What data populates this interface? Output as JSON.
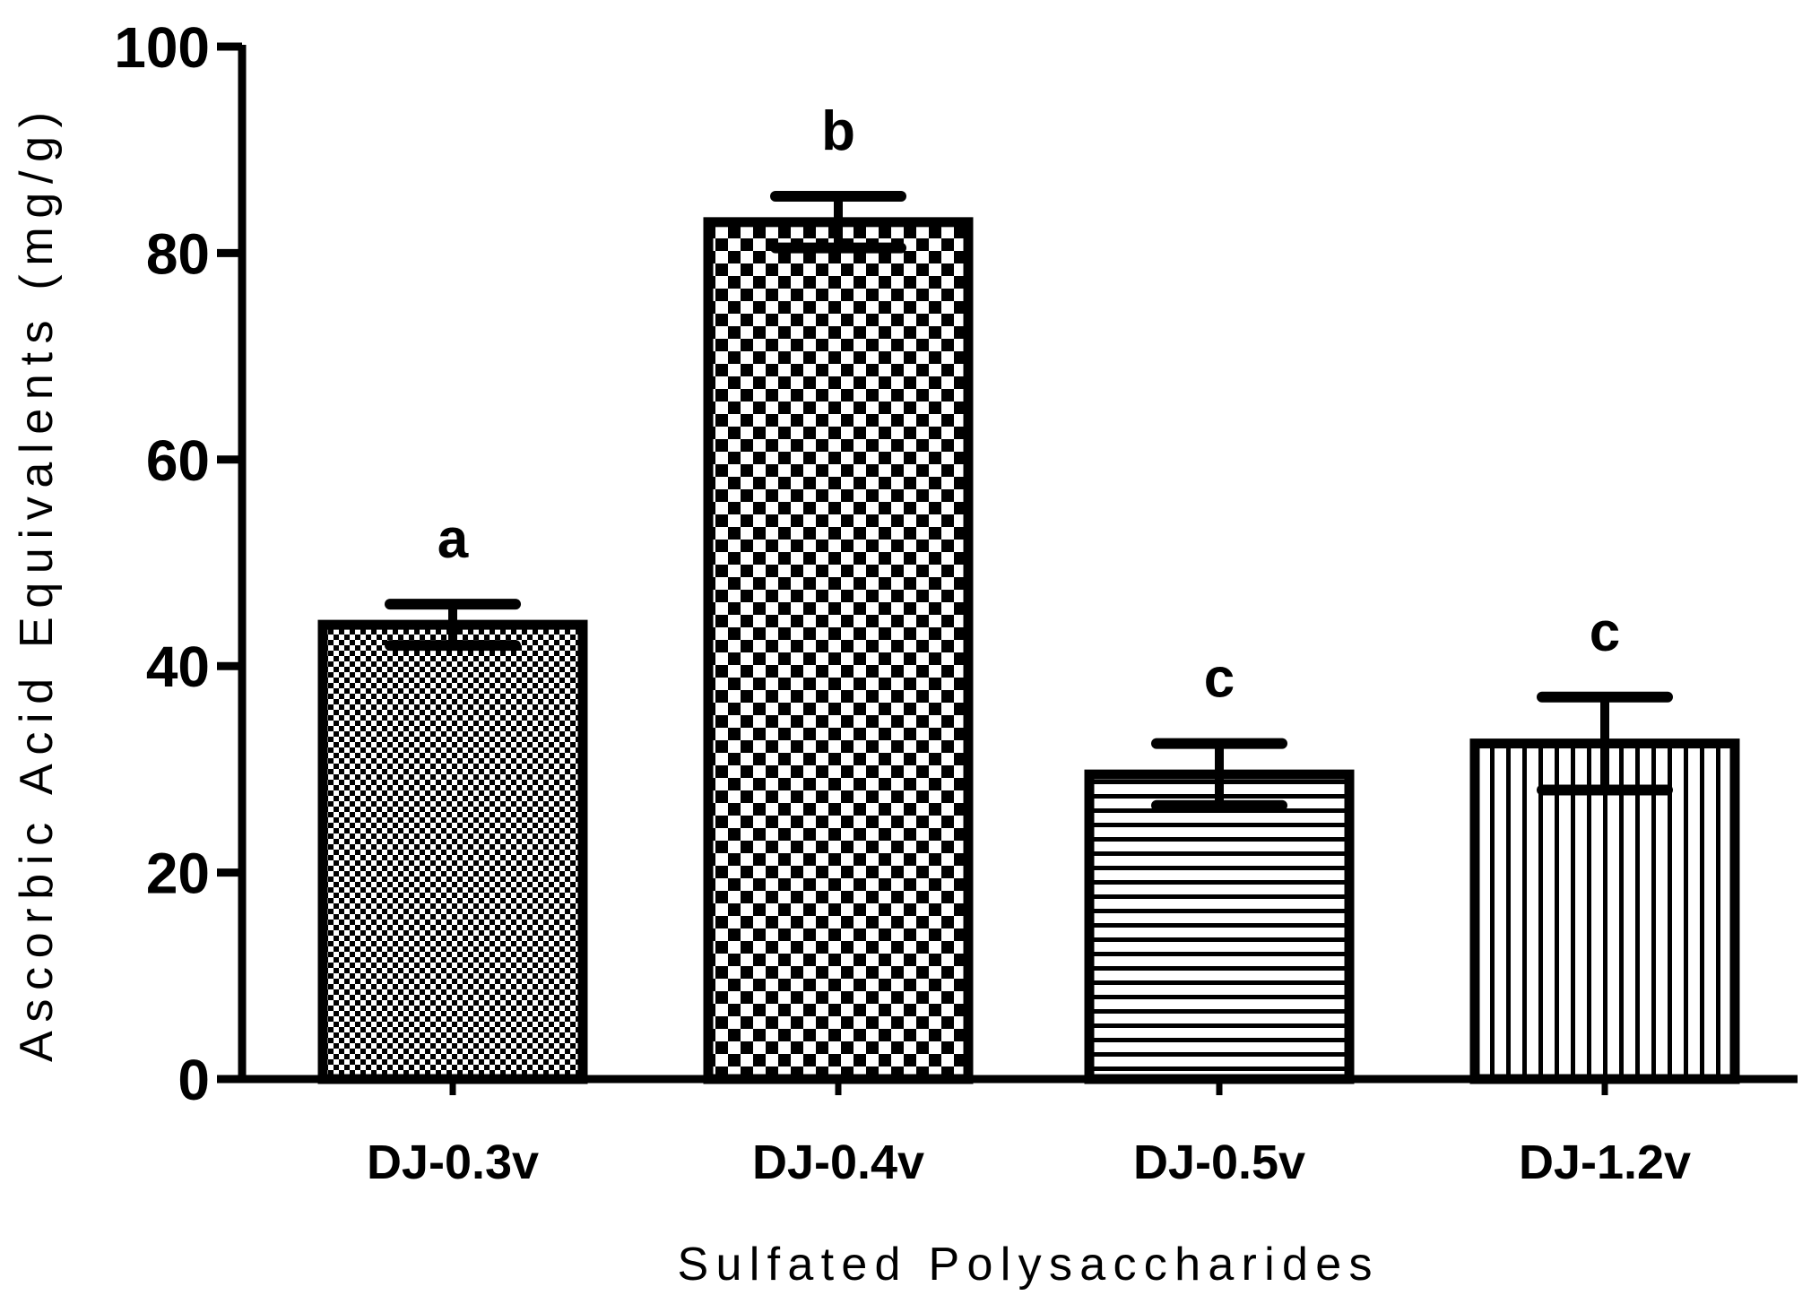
{
  "chart_data": {
    "type": "bar",
    "title": "",
    "xlabel": "Sulfated Polysaccharides",
    "ylabel": "Ascorbic Acid Equivalents (mg/g)",
    "ylim": [
      0,
      100
    ],
    "yticks": [
      "0",
      "20",
      "40",
      "60",
      "80",
      "100"
    ],
    "categories": [
      "DJ-0.3v",
      "DJ-0.4v",
      "DJ-0.5v",
      "DJ-1.2v"
    ],
    "values": [
      44,
      83,
      29.5,
      32.5
    ],
    "errors": [
      2,
      2.5,
      3,
      4.5
    ],
    "significance": [
      "a",
      "b",
      "c",
      "c"
    ],
    "patterns": [
      "fine-checker",
      "coarse-checker",
      "horizontal-lines",
      "vertical-lines"
    ],
    "colors": {
      "bar_fill": "#ffffff",
      "ink": "#000000"
    },
    "grid": false,
    "legend": "none"
  }
}
